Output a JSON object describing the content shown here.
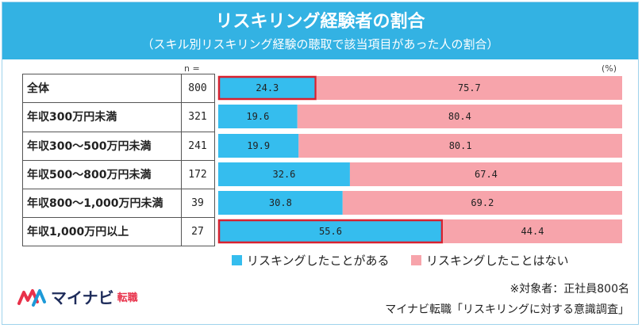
{
  "header": {
    "title": "リスキリング経験者の割合",
    "subtitle": "（スキル別リスキリング経験の聴取で該当項目があった人の割合）"
  },
  "chart_data": {
    "type": "bar",
    "orientation": "horizontal-stacked-100",
    "n_label": "n =",
    "unit_label": "(%)",
    "categories": [
      "全体",
      "年収300万円未満",
      "年収300～500万円未満",
      "年収500～800万円未満",
      "年収800～1,000万円未満",
      "年収1,000万円以上"
    ],
    "n": [
      "800",
      "321",
      "241",
      "172",
      "39",
      "27"
    ],
    "series": [
      {
        "name": "リスキングしたことがある",
        "color": "#35bdee",
        "values": [
          24.3,
          19.6,
          19.9,
          32.6,
          30.8,
          55.6
        ]
      },
      {
        "name": "リスキングしたことはない",
        "color": "#f7a4ab",
        "values": [
          75.7,
          80.4,
          80.1,
          67.4,
          69.2,
          44.4
        ]
      }
    ],
    "highlighted_categories": [
      "全体",
      "年収1,000万円以上"
    ],
    "highlight_color": "#d8212f",
    "xlim": [
      0,
      100
    ]
  },
  "legend": {
    "items": [
      {
        "label": "リスキングしたことがある",
        "color": "#35bdee"
      },
      {
        "label": "リスキングしたことはない",
        "color": "#f7a4ab"
      }
    ]
  },
  "footer": {
    "note": "※対象者：正社員800名",
    "source": "マイナビ転職「リスキリングに対する意識調査」"
  },
  "logo": {
    "name": "マイナビ",
    "sub": "転職",
    "icon": "mynavi-logo-icon"
  }
}
